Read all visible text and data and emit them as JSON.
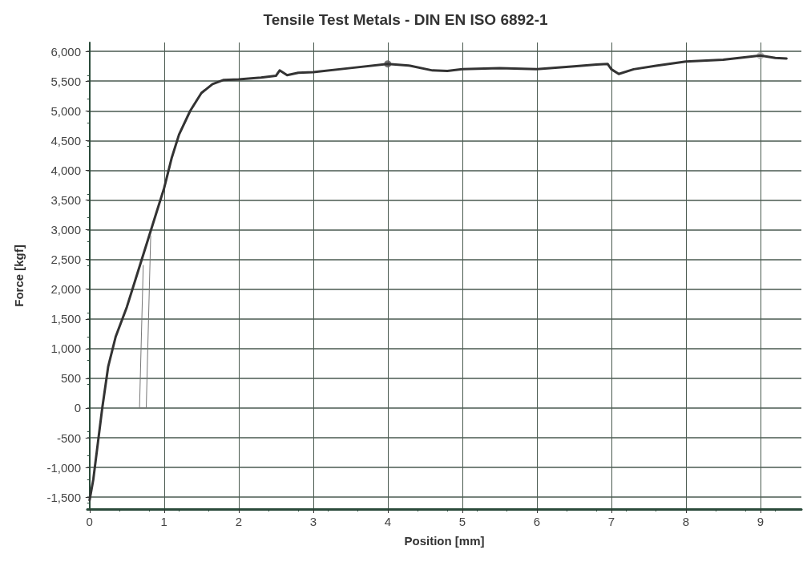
{
  "chart_data": {
    "type": "line",
    "title": "Tensile Test Metals - DIN EN ISO 6892-1",
    "xlabel": "Position [mm]",
    "ylabel": "Force [kgf]",
    "xlim": [
      -0.03,
      9.55
    ],
    "xticks": [
      0,
      1,
      2,
      3,
      4,
      5,
      6,
      7,
      8,
      9
    ],
    "ylim": [
      -1700,
      6150
    ],
    "yticks": [
      {
        "value": -1500,
        "label": "-1,500"
      },
      {
        "value": -1000,
        "label": "-1,000"
      },
      {
        "value": -500,
        "label": "-500"
      },
      0,
      500,
      {
        "value": 1000,
        "label": "1,000"
      },
      {
        "value": 1500,
        "label": "1,500"
      },
      {
        "value": 2000,
        "label": "2,000"
      },
      {
        "value": 2500,
        "label": "2,500"
      },
      {
        "value": 3000,
        "label": "3,000"
      },
      {
        "value": 3500,
        "label": "3,500"
      },
      {
        "value": 4000,
        "label": "4,000"
      },
      {
        "value": 4500,
        "label": "4,500"
      },
      {
        "value": 5000,
        "label": "5,000"
      },
      {
        "value": 5500,
        "label": "5,500"
      },
      {
        "value": 6000,
        "label": "6,000"
      }
    ],
    "grid": true,
    "line_style": "solid",
    "series": [
      {
        "color": "#333333",
        "x": [
          0.0,
          0.05,
          0.1,
          0.17,
          0.25,
          0.35,
          0.5,
          0.65,
          0.8,
          0.9,
          1.0,
          1.1,
          1.2,
          1.35,
          1.5,
          1.65,
          1.8,
          2.0,
          2.3,
          2.5,
          2.55,
          2.65,
          2.8,
          3.0,
          3.5,
          4.0,
          4.3,
          4.6,
          4.8,
          5.0,
          5.5,
          6.0,
          6.5,
          6.8,
          6.95,
          7.0,
          7.1,
          7.3,
          7.6,
          8.0,
          8.5,
          9.0,
          9.2,
          9.35
        ],
        "values": [
          -1550,
          -1200,
          -700,
          0,
          700,
          1200,
          1700,
          2300,
          2900,
          3300,
          3700,
          4200,
          4600,
          5000,
          5300,
          5450,
          5520,
          5530,
          5560,
          5590,
          5680,
          5600,
          5640,
          5650,
          5720,
          5790,
          5760,
          5680,
          5670,
          5700,
          5720,
          5700,
          5750,
          5780,
          5790,
          5700,
          5620,
          5700,
          5760,
          5830,
          5860,
          5930,
          5890,
          5880
        ]
      },
      {
        "color": "#777777",
        "x": [
          0.72,
          0.67,
          0.76,
          0.82
        ],
        "values": [
          2400,
          0,
          0,
          2900
        ]
      },
      {
        "type": "scatter",
        "marker": "circle",
        "color": "#555555",
        "x": [
          4.0
        ],
        "values": [
          5790
        ]
      },
      {
        "type": "scatter",
        "marker": "circle",
        "color": "#aaaaaa",
        "x": [
          9.0
        ],
        "values": [
          5930
        ]
      }
    ]
  }
}
